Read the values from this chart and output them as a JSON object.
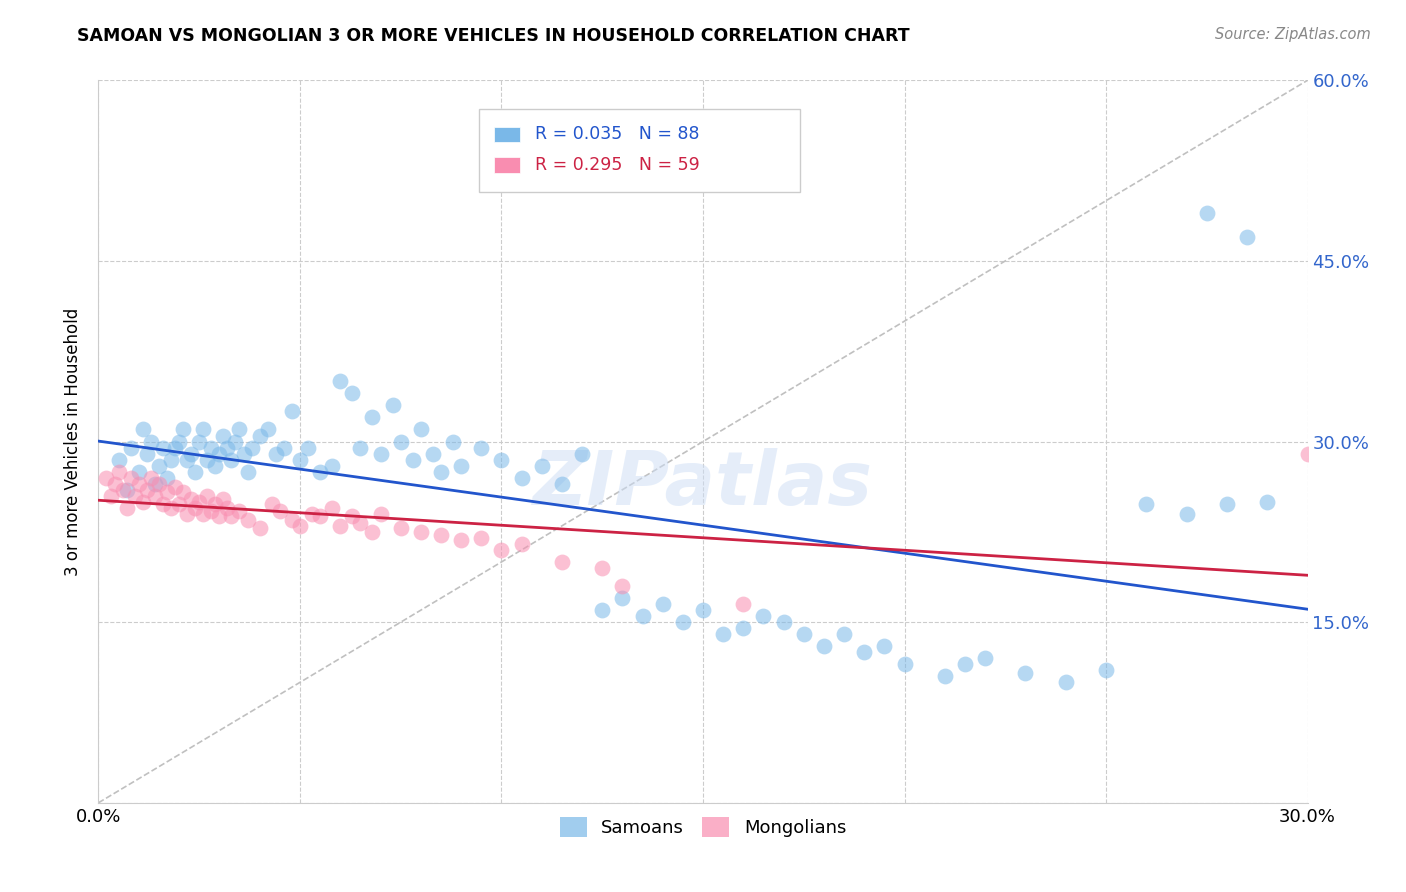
{
  "title": "SAMOAN VS MONGOLIAN 3 OR MORE VEHICLES IN HOUSEHOLD CORRELATION CHART",
  "source": "Source: ZipAtlas.com",
  "ylabel": "3 or more Vehicles in Household",
  "watermark": "ZIPatlas",
  "x_min": 0.0,
  "x_max": 0.3,
  "y_min": 0.0,
  "y_max": 0.6,
  "x_ticks": [
    0.0,
    0.05,
    0.1,
    0.15,
    0.2,
    0.25,
    0.3
  ],
  "x_tick_labels": [
    "0.0%",
    "",
    "",
    "",
    "",
    "",
    "30.0%"
  ],
  "y_ticks": [
    0.0,
    0.15,
    0.3,
    0.45,
    0.6
  ],
  "y_tick_labels_right": [
    "",
    "15.0%",
    "30.0%",
    "45.0%",
    "60.0%"
  ],
  "samoans_R": 0.035,
  "samoans_N": 88,
  "mongolians_R": 0.295,
  "mongolians_N": 59,
  "samoans_color": "#7ab8e8",
  "mongolians_color": "#f98db0",
  "trend_samoans_color": "#2255cc",
  "trend_mongolians_color": "#cc2244",
  "diagonal_color": "#c0c0c0",
  "right_tick_color": "#3366cc",
  "background_color": "#ffffff",
  "grid_color": "#cccccc",
  "samoans_x": [
    0.005,
    0.007,
    0.008,
    0.01,
    0.011,
    0.012,
    0.013,
    0.014,
    0.015,
    0.016,
    0.017,
    0.018,
    0.019,
    0.02,
    0.021,
    0.022,
    0.023,
    0.024,
    0.025,
    0.026,
    0.027,
    0.028,
    0.029,
    0.03,
    0.031,
    0.032,
    0.033,
    0.034,
    0.035,
    0.036,
    0.037,
    0.038,
    0.04,
    0.042,
    0.044,
    0.046,
    0.048,
    0.05,
    0.052,
    0.055,
    0.058,
    0.06,
    0.063,
    0.065,
    0.068,
    0.07,
    0.073,
    0.075,
    0.078,
    0.08,
    0.083,
    0.085,
    0.088,
    0.09,
    0.095,
    0.1,
    0.105,
    0.11,
    0.115,
    0.12,
    0.125,
    0.13,
    0.135,
    0.14,
    0.145,
    0.15,
    0.155,
    0.16,
    0.165,
    0.17,
    0.175,
    0.18,
    0.185,
    0.19,
    0.195,
    0.2,
    0.21,
    0.215,
    0.22,
    0.23,
    0.24,
    0.25,
    0.26,
    0.27,
    0.275,
    0.28,
    0.285,
    0.29
  ],
  "samoans_y": [
    0.285,
    0.26,
    0.295,
    0.275,
    0.31,
    0.29,
    0.3,
    0.265,
    0.28,
    0.295,
    0.27,
    0.285,
    0.295,
    0.3,
    0.31,
    0.285,
    0.29,
    0.275,
    0.3,
    0.31,
    0.285,
    0.295,
    0.28,
    0.29,
    0.305,
    0.295,
    0.285,
    0.3,
    0.31,
    0.29,
    0.275,
    0.295,
    0.305,
    0.31,
    0.29,
    0.295,
    0.325,
    0.285,
    0.295,
    0.275,
    0.28,
    0.35,
    0.34,
    0.295,
    0.32,
    0.29,
    0.33,
    0.3,
    0.285,
    0.31,
    0.29,
    0.275,
    0.3,
    0.28,
    0.295,
    0.285,
    0.27,
    0.28,
    0.265,
    0.29,
    0.16,
    0.17,
    0.155,
    0.165,
    0.15,
    0.16,
    0.14,
    0.145,
    0.155,
    0.15,
    0.14,
    0.13,
    0.14,
    0.125,
    0.13,
    0.115,
    0.105,
    0.115,
    0.12,
    0.108,
    0.1,
    0.11,
    0.248,
    0.24,
    0.49,
    0.248,
    0.47,
    0.25
  ],
  "mongolians_x": [
    0.002,
    0.003,
    0.004,
    0.005,
    0.006,
    0.007,
    0.008,
    0.009,
    0.01,
    0.011,
    0.012,
    0.013,
    0.014,
    0.015,
    0.016,
    0.017,
    0.018,
    0.019,
    0.02,
    0.021,
    0.022,
    0.023,
    0.024,
    0.025,
    0.026,
    0.027,
    0.028,
    0.029,
    0.03,
    0.031,
    0.032,
    0.033,
    0.035,
    0.037,
    0.04,
    0.043,
    0.045,
    0.048,
    0.05,
    0.053,
    0.055,
    0.058,
    0.06,
    0.063,
    0.065,
    0.068,
    0.07,
    0.075,
    0.08,
    0.085,
    0.09,
    0.095,
    0.1,
    0.105,
    0.115,
    0.125,
    0.13,
    0.16,
    0.3
  ],
  "mongolians_y": [
    0.27,
    0.255,
    0.265,
    0.275,
    0.26,
    0.245,
    0.27,
    0.255,
    0.265,
    0.25,
    0.26,
    0.27,
    0.255,
    0.265,
    0.248,
    0.258,
    0.245,
    0.262,
    0.248,
    0.258,
    0.24,
    0.252,
    0.245,
    0.25,
    0.24,
    0.255,
    0.242,
    0.248,
    0.238,
    0.252,
    0.245,
    0.238,
    0.242,
    0.235,
    0.228,
    0.248,
    0.242,
    0.235,
    0.23,
    0.24,
    0.238,
    0.245,
    0.23,
    0.238,
    0.232,
    0.225,
    0.24,
    0.228,
    0.225,
    0.222,
    0.218,
    0.22,
    0.21,
    0.215,
    0.2,
    0.195,
    0.18,
    0.165,
    0.29
  ]
}
